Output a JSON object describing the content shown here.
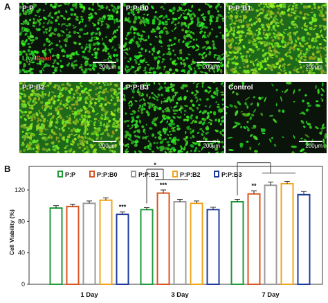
{
  "figure": {
    "panel_a_letter": "A",
    "panel_b_letter": "B"
  },
  "micrographs": [
    {
      "label": "P:P",
      "scale": "200μm",
      "stain": true,
      "tint": "#2bbf2b",
      "density": "high"
    },
    {
      "label": "P:P:B0",
      "scale": "200μm",
      "stain": false,
      "tint": "#2bbf2b",
      "density": "high"
    },
    {
      "label": "P:P:B1",
      "scale": "200μm",
      "stain": false,
      "tint": "#4ccb2e",
      "density": "very-high"
    },
    {
      "label": "P:P:B2",
      "scale": "200μm",
      "stain": false,
      "tint": "#59cc30",
      "density": "very-high"
    },
    {
      "label": "P:P:B3",
      "scale": "200μm",
      "stain": false,
      "tint": "#33bd33",
      "density": "high"
    },
    {
      "label": "Control",
      "scale": "200μm",
      "stain": false,
      "tint": "#2bb22b",
      "density": "low"
    }
  ],
  "stain_legend": {
    "live": "Live",
    "slash": "/",
    "dead": "Dead"
  },
  "chart_data": {
    "type": "bar",
    "categories": [
      "1 Day",
      "3 Day",
      "7 Day"
    ],
    "series": [
      {
        "name": "P:P",
        "color": "#1e9a3a",
        "values": [
          97,
          95,
          105
        ],
        "errors": [
          3,
          2.5,
          3
        ],
        "sig": [
          "",
          "",
          ""
        ]
      },
      {
        "name": "P:P:B0",
        "color": "#d9541e",
        "values": [
          99,
          116,
          115
        ],
        "errors": [
          3,
          4,
          4
        ],
        "sig": [
          "",
          "***",
          "**"
        ]
      },
      {
        "name": "P:P:B1",
        "color": "#9b9b9b",
        "values": [
          103,
          105,
          126
        ],
        "errors": [
          3,
          3,
          4
        ],
        "sig": [
          "",
          "",
          ""
        ]
      },
      {
        "name": "P:P:B2",
        "color": "#f0a418",
        "values": [
          107,
          103,
          128
        ],
        "errors": [
          3,
          3,
          3
        ],
        "sig": [
          "",
          "",
          ""
        ]
      },
      {
        "name": "P:P:B3",
        "color": "#1f3a9c",
        "values": [
          89,
          95,
          114
        ],
        "errors": [
          3,
          3,
          4
        ],
        "sig": [
          "***",
          "",
          ""
        ]
      }
    ],
    "ylabel": "Cell Viability (%)",
    "ylim": [
      0,
      150
    ],
    "yticks": [
      0,
      40,
      80,
      120
    ],
    "brackets": [
      {
        "category": 1,
        "from_series": 0,
        "to_series": 1,
        "label": "*"
      },
      {
        "category": 2,
        "from_series": 0,
        "to_series": 2,
        "label": "***"
      }
    ],
    "legend_position": "top-left"
  }
}
